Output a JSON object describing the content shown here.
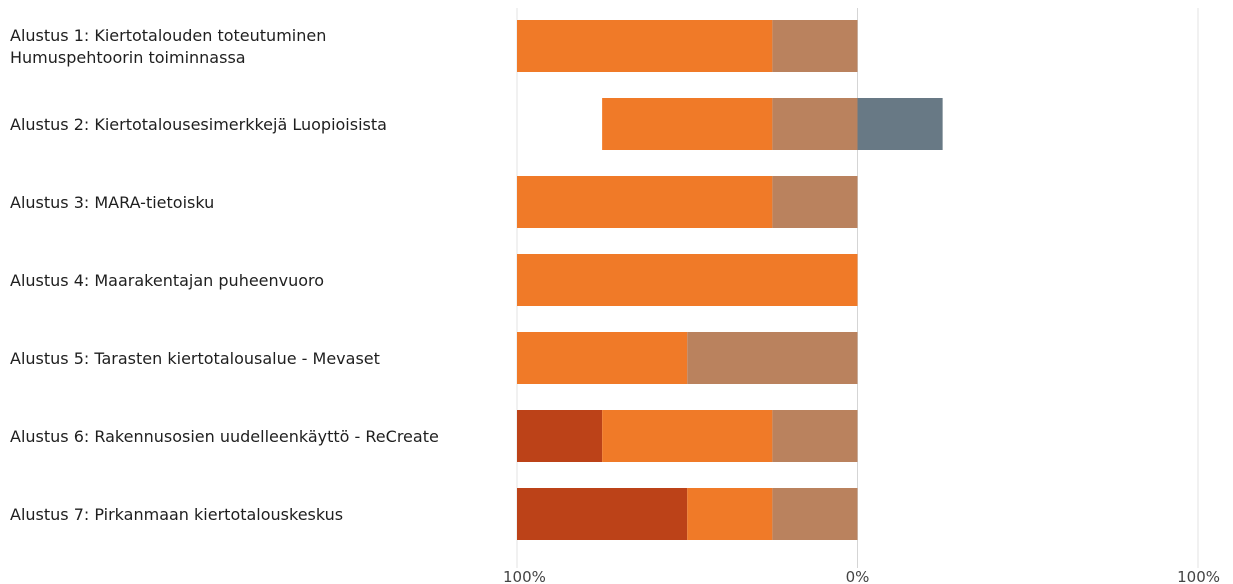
{
  "chart_data": {
    "type": "bar",
    "orientation": "horizontal",
    "stacked": true,
    "diverging": true,
    "xlim": [
      -100,
      100
    ],
    "x_ticks": [
      {
        "value": -100,
        "label": "100%"
      },
      {
        "value": 0,
        "label": "0%"
      },
      {
        "value": 100,
        "label": "100%"
      }
    ],
    "grid": true,
    "categories": [
      [
        "Alustus 1: Kiertotalouden toteutuminen",
        "Humuspehtoorin toiminnassa"
      ],
      [
        "Alustus 2: Kiertotalousesimerkkejä Luopioisista"
      ],
      [
        "Alustus 3: MARA-tietoisku"
      ],
      [
        "Alustus 4: Maarakentajan puheenvuoro"
      ],
      [
        "Alustus 5: Tarasten kiertotalousalue - Mevaset"
      ],
      [
        "Alustus 6: Rakennusosien uudelleenkäyttö - ReCreate"
      ],
      [
        "Alustus 7: Pirkanmaan kiertotalouskeskus"
      ]
    ],
    "series": [
      {
        "side": "negative",
        "color": "#BC4218",
        "values": [
          0,
          0,
          0,
          0,
          0,
          25,
          50
        ]
      },
      {
        "side": "negative",
        "color": "#F07A28",
        "values": [
          75,
          50,
          75,
          100,
          50,
          50,
          25
        ]
      },
      {
        "side": "negative",
        "color": "#BA825E",
        "values": [
          25,
          25,
          25,
          0,
          50,
          25,
          25
        ]
      },
      {
        "side": "positive",
        "color": "#687985",
        "values": [
          0,
          25,
          0,
          0,
          0,
          0,
          0
        ]
      }
    ],
    "colors": {
      "grid": "#E3E3E3",
      "zero_line": "#D5D5D5"
    }
  }
}
